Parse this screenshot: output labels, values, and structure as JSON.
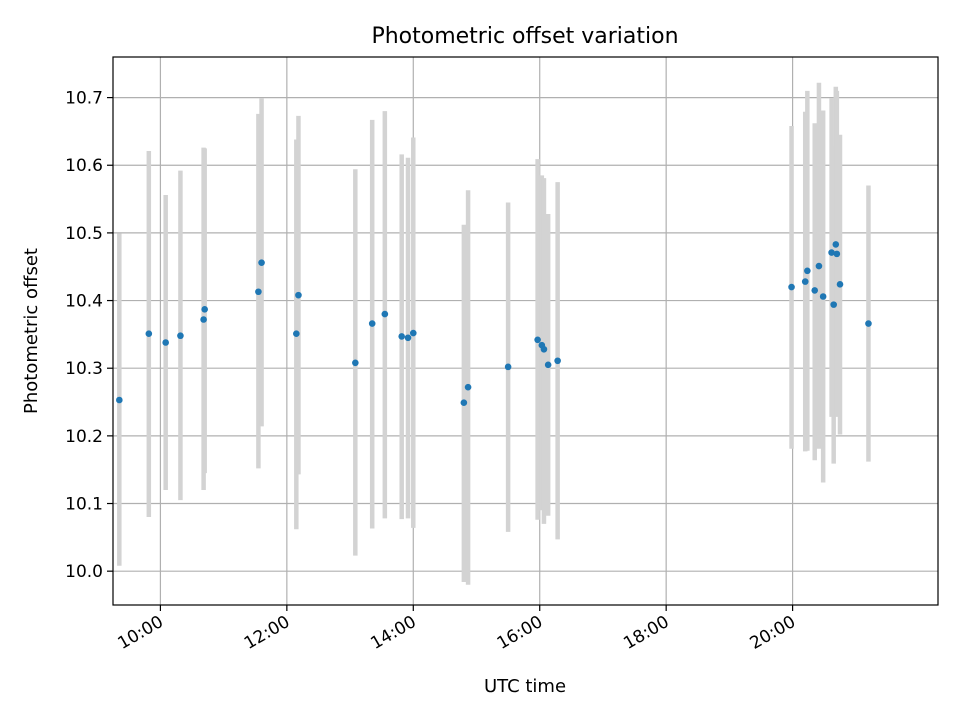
{
  "chart_data": {
    "type": "scatter",
    "title": "Photometric offset variation",
    "xlabel": "UTC time",
    "ylabel": "Photometric offset",
    "x_ticks": [
      "10:00",
      "12:00",
      "14:00",
      "16:00",
      "18:00",
      "20:00"
    ],
    "y_ticks": [
      "10.0",
      "10.1",
      "10.2",
      "10.3",
      "10.4",
      "10.5",
      "10.6",
      "10.7"
    ],
    "xlim": [
      "09:15",
      "22:18"
    ],
    "ylim": [
      9.95,
      10.76
    ],
    "grid": true,
    "error_bar_color": "#d3d3d3",
    "point_color": "#1f77b4",
    "points": [
      {
        "x": "09:21",
        "y": 10.253,
        "err_low": 10.008,
        "err_high": 10.499
      },
      {
        "x": "09:49",
        "y": 10.351,
        "err_low": 10.08,
        "err_high": 10.621
      },
      {
        "x": "10:05",
        "y": 10.338,
        "err_low": 10.12,
        "err_high": 10.556
      },
      {
        "x": "10:19",
        "y": 10.348,
        "err_low": 10.105,
        "err_high": 10.592
      },
      {
        "x": "10:41",
        "y": 10.372,
        "err_low": 10.12,
        "err_high": 10.626
      },
      {
        "x": "10:42",
        "y": 10.387,
        "err_low": 10.145,
        "err_high": 10.625
      },
      {
        "x": "11:33",
        "y": 10.413,
        "err_low": 10.152,
        "err_high": 10.676
      },
      {
        "x": "11:36",
        "y": 10.456,
        "err_low": 10.214,
        "err_high": 10.699
      },
      {
        "x": "12:09",
        "y": 10.351,
        "err_low": 10.062,
        "err_high": 10.638
      },
      {
        "x": "12:11",
        "y": 10.408,
        "err_low": 10.143,
        "err_high": 10.673
      },
      {
        "x": "13:05",
        "y": 10.308,
        "err_low": 10.023,
        "err_high": 10.594
      },
      {
        "x": "13:21",
        "y": 10.366,
        "err_low": 10.063,
        "err_high": 10.667
      },
      {
        "x": "13:33",
        "y": 10.38,
        "err_low": 10.078,
        "err_high": 10.68
      },
      {
        "x": "13:49",
        "y": 10.347,
        "err_low": 10.077,
        "err_high": 10.616
      },
      {
        "x": "13:55",
        "y": 10.345,
        "err_low": 10.078,
        "err_high": 10.611
      },
      {
        "x": "14:00",
        "y": 10.352,
        "err_low": 10.064,
        "err_high": 10.641
      },
      {
        "x": "14:48",
        "y": 10.249,
        "err_low": 9.984,
        "err_high": 10.512
      },
      {
        "x": "14:52",
        "y": 10.272,
        "err_low": 9.98,
        "err_high": 10.563
      },
      {
        "x": "15:30",
        "y": 10.302,
        "err_low": 10.058,
        "err_high": 10.545
      },
      {
        "x": "15:58",
        "y": 10.342,
        "err_low": 10.076,
        "err_high": 10.609
      },
      {
        "x": "16:02",
        "y": 10.334,
        "err_low": 10.09,
        "err_high": 10.585
      },
      {
        "x": "16:04",
        "y": 10.328,
        "err_low": 10.07,
        "err_high": 10.581
      },
      {
        "x": "16:08",
        "y": 10.305,
        "err_low": 10.082,
        "err_high": 10.528
      },
      {
        "x": "16:17",
        "y": 10.311,
        "err_low": 10.047,
        "err_high": 10.575
      },
      {
        "x": "19:59",
        "y": 10.42,
        "err_low": 10.181,
        "err_high": 10.658
      },
      {
        "x": "20:12",
        "y": 10.428,
        "err_low": 10.177,
        "err_high": 10.679
      },
      {
        "x": "20:14",
        "y": 10.444,
        "err_low": 10.178,
        "err_high": 10.71
      },
      {
        "x": "20:21",
        "y": 10.415,
        "err_low": 10.164,
        "err_high": 10.662
      },
      {
        "x": "20:25",
        "y": 10.451,
        "err_low": 10.181,
        "err_high": 10.722
      },
      {
        "x": "20:29",
        "y": 10.406,
        "err_low": 10.131,
        "err_high": 10.681
      },
      {
        "x": "20:37",
        "y": 10.471,
        "err_low": 10.228,
        "err_high": 10.699
      },
      {
        "x": "20:39",
        "y": 10.394,
        "err_low": 10.159,
        "err_high": 10.629
      },
      {
        "x": "20:41",
        "y": 10.483,
        "err_low": 10.236,
        "err_high": 10.716
      },
      {
        "x": "20:42",
        "y": 10.469,
        "err_low": 10.228,
        "err_high": 10.71
      },
      {
        "x": "20:45",
        "y": 10.424,
        "err_low": 10.202,
        "err_high": 10.645
      },
      {
        "x": "21:12",
        "y": 10.366,
        "err_low": 10.162,
        "err_high": 10.57
      }
    ]
  }
}
